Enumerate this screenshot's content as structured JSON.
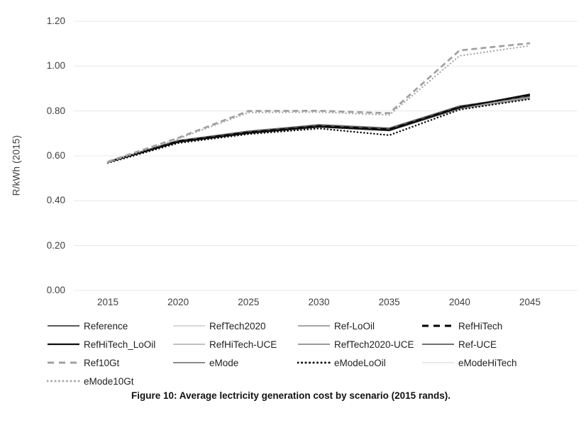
{
  "figure": {
    "caption": "Figure 10: Average lectricity generation cost by scenario (2015 rands).",
    "background_color": "#ffffff"
  },
  "chart_data": {
    "type": "line",
    "title": "",
    "xlabel": "",
    "ylabel": "R/kWh (2015)",
    "x": [
      2015,
      2020,
      2025,
      2030,
      2035,
      2040,
      2045
    ],
    "xtick_labels": [
      "2015",
      "2020",
      "2025",
      "2030",
      "2035",
      "2040",
      "2045"
    ],
    "ylim": [
      0.0,
      1.2
    ],
    "ytick_step": 0.2,
    "ytick_labels": [
      "0.00",
      "0.20",
      "0.40",
      "0.60",
      "0.80",
      "1.00",
      "1.20"
    ],
    "grid": "horizontal-only",
    "gridline_color": "#e8e8e8",
    "legend_position": "bottom",
    "tick_label_color": "#3f3f3f",
    "series": [
      {
        "name": "Reference",
        "color": "#5a5a5a",
        "style": "solid",
        "width": 1.9,
        "z": 8,
        "values": [
          0.573,
          0.666,
          0.707,
          0.736,
          0.721,
          0.82,
          0.868
        ]
      },
      {
        "name": "RefTech2020",
        "color": "#d8d8d8",
        "style": "solid",
        "width": 1.8,
        "z": 2,
        "values": [
          0.573,
          0.663,
          0.703,
          0.731,
          0.716,
          0.813,
          0.86
        ]
      },
      {
        "name": "Ref-LoOil",
        "color": "#a6a6a6",
        "style": "solid",
        "width": 1.8,
        "z": 4,
        "values": [
          0.572,
          0.661,
          0.7,
          0.728,
          0.712,
          0.809,
          0.856
        ]
      },
      {
        "name": "RefHiTech",
        "color": "#000000",
        "style": "dash",
        "width": 2.3,
        "z": 9,
        "values": [
          0.573,
          0.665,
          0.705,
          0.733,
          0.718,
          0.817,
          0.871
        ]
      },
      {
        "name": "RefHiTech_LoOil",
        "color": "#0d0d0d",
        "style": "solid",
        "width": 2.3,
        "z": 10,
        "values": [
          0.572,
          0.662,
          0.702,
          0.73,
          0.714,
          0.815,
          0.874
        ]
      },
      {
        "name": "RefHiTech-UCE",
        "color": "#c0c0c0",
        "style": "solid",
        "width": 1.8,
        "z": 3,
        "values": [
          0.574,
          0.667,
          0.708,
          0.735,
          0.719,
          0.816,
          0.862
        ]
      },
      {
        "name": "RefTech2020-UCE",
        "color": "#9a9a9a",
        "style": "solid",
        "width": 1.8,
        "z": 5,
        "values": [
          0.573,
          0.664,
          0.704,
          0.732,
          0.717,
          0.812,
          0.858
        ]
      },
      {
        "name": "Ref-UCE",
        "color": "#6f6f6f",
        "style": "solid",
        "width": 1.9,
        "z": 7,
        "values": [
          0.574,
          0.668,
          0.71,
          0.738,
          0.723,
          0.822,
          0.866
        ]
      },
      {
        "name": "Ref10Gt",
        "color": "#a0a0a0",
        "style": "dash",
        "width": 2.7,
        "z": 12,
        "values": [
          0.574,
          0.68,
          0.8,
          0.801,
          0.79,
          1.07,
          1.102
        ]
      },
      {
        "name": "eMode",
        "color": "#8d8d8d",
        "style": "solid",
        "width": 1.8,
        "z": 6,
        "values": [
          0.573,
          0.667,
          0.709,
          0.739,
          0.724,
          0.821,
          0.864
        ]
      },
      {
        "name": "eModeLoOil",
        "color": "#111111",
        "style": "dot",
        "width": 2.5,
        "z": 11,
        "values": [
          0.568,
          0.657,
          0.697,
          0.722,
          0.692,
          0.806,
          0.853
        ]
      },
      {
        "name": "eModeHiTech",
        "color": "#e9e9e9",
        "style": "solid",
        "width": 1.8,
        "z": 1,
        "values": [
          0.573,
          0.664,
          0.705,
          0.733,
          0.717,
          0.814,
          0.859
        ]
      },
      {
        "name": "eMode10Gt",
        "color": "#aaaaaa",
        "style": "dot",
        "width": 2.3,
        "z": 13,
        "values": [
          0.57,
          0.676,
          0.793,
          0.795,
          0.782,
          1.046,
          1.091
        ]
      }
    ]
  }
}
